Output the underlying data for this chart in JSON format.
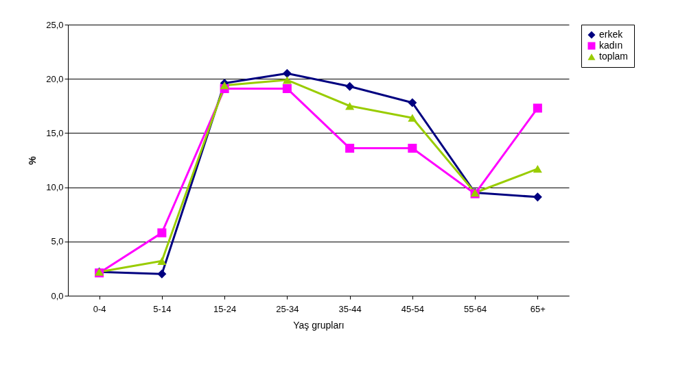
{
  "chart_data": {
    "type": "line",
    "xlabel": "Yaş grupları",
    "ylabel": "%",
    "categories": [
      "0-4",
      "5-14",
      "15-24",
      "25-34",
      "35-44",
      "45-54",
      "55-64",
      "65+"
    ],
    "series": [
      {
        "name": "erkek",
        "color": "#000080",
        "marker": "diamond",
        "values": [
          2.2,
          2.0,
          19.6,
          20.5,
          19.3,
          17.8,
          9.5,
          9.1
        ]
      },
      {
        "name": "kadın",
        "color": "#ff00ff",
        "marker": "square",
        "values": [
          2.1,
          5.8,
          19.1,
          19.1,
          13.6,
          13.6,
          9.4,
          17.3
        ]
      },
      {
        "name": "toplam",
        "color": "#99cc00",
        "marker": "triangle",
        "values": [
          2.2,
          3.2,
          19.4,
          19.9,
          17.5,
          16.4,
          9.5,
          11.7
        ]
      }
    ],
    "ylim": [
      0,
      25
    ],
    "yticks": [
      {
        "value": 0,
        "label": "0,0"
      },
      {
        "value": 5,
        "label": "5,0"
      },
      {
        "value": 10,
        "label": "10,0"
      },
      {
        "value": 15,
        "label": "15,0"
      },
      {
        "value": 20,
        "label": "20,0"
      },
      {
        "value": 25,
        "label": "25,0"
      }
    ],
    "grid": "y",
    "legend": "right",
    "line_style": "solid"
  }
}
